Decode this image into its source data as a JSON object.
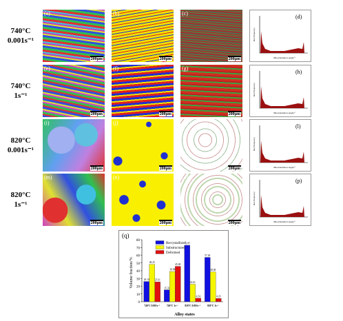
{
  "rows": [
    {
      "lines": [
        "740°C",
        "0.001s⁻¹"
      ],
      "panels": [
        "(a)",
        "(b)",
        "(c)",
        "(d)"
      ]
    },
    {
      "lines": [
        "740°C",
        "1s⁻¹"
      ],
      "panels": [
        "(e)",
        "(f)",
        "(g)",
        "(h)"
      ]
    },
    {
      "lines": [
        "820°C",
        "0.001s⁻¹"
      ],
      "panels": [
        "(i)",
        "(j)",
        "(k)",
        "(l)"
      ]
    },
    {
      "lines": [
        "820°C",
        "1s⁻¹"
      ],
      "panels": [
        "(m)",
        "(n)",
        "(o)",
        "(p)"
      ]
    }
  ],
  "scale_bar": "200μm",
  "histogram": {
    "ylabel": "Rel.frequency",
    "xlabel": "Misorientation angle/°"
  },
  "chart_data": {
    "type": "bar",
    "panel": "(q)",
    "xlabel": "Alloy states",
    "ylabel": "Volume fraction/%",
    "categories": [
      "740°C 0.001s⁻¹",
      "740°C 1s⁻¹",
      "820°C 0.001s⁻¹",
      "820°C 1s⁻¹"
    ],
    "series": [
      {
        "name": "Recrystallized",
        "color": "#1010e0",
        "values": [
          26.14,
          15.33,
          72.85,
          57.26
        ]
      },
      {
        "name": "Substructured",
        "color": "#f5f500",
        "values": [
          48.25,
          38.98,
          22.61,
          38.48
        ]
      },
      {
        "name": "Deformed",
        "color": "#e01010",
        "values": [
          25.61,
          45.69,
          4.54,
          4.26
        ]
      }
    ],
    "ylim": [
      0,
      80
    ],
    "yticks": [
      0,
      10,
      20,
      30,
      40,
      50,
      60,
      70,
      80
    ]
  }
}
